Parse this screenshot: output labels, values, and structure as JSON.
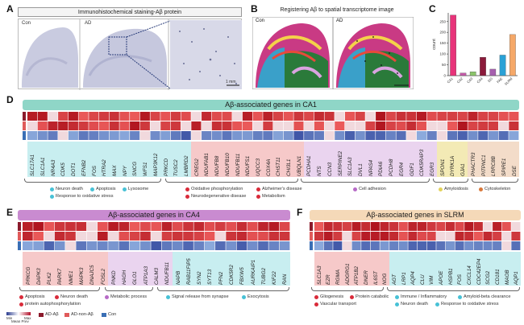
{
  "panelA": {
    "label": "A",
    "title": "Immunohistochemical staining-Aβ protein",
    "con": "Con",
    "ad": "AD",
    "scale": "1 mm"
  },
  "panelB": {
    "label": "B",
    "title": "Registering Aβ to spatial transcriptome image",
    "con": "Con",
    "ad": "AD"
  },
  "panelC": {
    "label": "C",
    "ylabel": "count",
    "ticks": [
      "0",
      "50",
      "100",
      "150",
      "200",
      "250"
    ]
  },
  "chart_data": {
    "type": "bar",
    "categories": [
      "CA1",
      "CA2",
      "CA3",
      "CA4",
      "DG",
      "FAE",
      "SLRM"
    ],
    "values": [
      280,
      12,
      18,
      85,
      30,
      95,
      190
    ],
    "colors": [
      "#e8337a",
      "#c45aa8",
      "#8bc46a",
      "#8b1a3a",
      "#a65fae",
      "#2aa1d6",
      "#f5a868"
    ],
    "ylabel": "count",
    "ylim": [
      0,
      290
    ]
  },
  "panelD": {
    "label": "D",
    "banner": "Aβ-associated genes in CA1",
    "genes": [
      "SLC17A1",
      "SLC1A1",
      "NR4A3",
      "CDK5",
      "DOT1",
      "EFNB2",
      "FOS",
      "HTRA2",
      "MAX",
      "NPY",
      "SNCG",
      "WFS1",
      "MAP3K12",
      "PRKCD",
      "TUSC2",
      "LMBRD2",
      "CREG2",
      "NDUFAB1",
      "NDUFB8",
      "NDUFB10",
      "NDUFB11",
      "NDUFS1",
      "UQCC3",
      "COX4A",
      "CHST11",
      "CHI3L1",
      "UBQLN1",
      "PCDHA1",
      "NTS",
      "CCN3",
      "SERPINE2",
      "SLC1A3",
      "DVL1",
      "NPAS4",
      "PDIA6",
      "PCDH8",
      "EGR4",
      "GDF1",
      "CDK5RAP3",
      "EGR3",
      "SPON1",
      "DYRK1A",
      "GJA1",
      "PHACTR3",
      "PITPNC1",
      "LRRC8B",
      "SPIRE1",
      "DSE"
    ],
    "legend": {
      "neuron_death": "Neuron death",
      "apoptosis": "Apoptosis",
      "lysosome": "Lysosome",
      "oxidative": "Response to oxidative stress",
      "oxphos": "Oxidative phosphorylation",
      "alzheimer": "Alzheimer's disease",
      "neurodegen": "Neurodegenerative disease",
      "metabolism": "Metabolism",
      "cell_adhesion": "Cell adhesion",
      "amyloidosis": "Amyloidosis",
      "cytoskeleton": "Cytoskeleton"
    }
  },
  "panelE": {
    "label": "E",
    "banner": "Aβ-associated genes in CA4",
    "genes": [
      "PRKCG",
      "DAPK3",
      "PLK2",
      "PARK7",
      "NME1",
      "MAPK3",
      "DNAJC5",
      "FOSL2",
      "PNKD",
      "HAGH",
      "GLO1",
      "ATP1A3",
      "CALM3",
      "NDUFB11",
      "NAPB",
      "RAB11FIP5",
      "SYN2",
      "SYT13",
      "PFN2",
      "CDK5R2",
      "FBXW5",
      "AURKAIP1",
      "TUBG2",
      "KIF22",
      "RAN"
    ],
    "legend": {
      "apoptosis": "Apoptosis",
      "neuron_death": "Neuron death",
      "autophagy": "protein autophosphorylation",
      "metabolic": "Metabolic process",
      "signal": "Signal release from synapse",
      "exocytosis": "Exocytosis"
    }
  },
  "panelF": {
    "label": "F",
    "banner": "Aβ-associated genes in SLRM",
    "genes": [
      "SLC1A3",
      "EZR",
      "RGMA",
      "ADGRG1",
      "ATP1B2",
      "DNER",
      "IL6ST",
      "NOG",
      "AGT",
      "LRP1",
      "AQP4",
      "CLU",
      "VIM",
      "APOE",
      "HSPB1",
      "FOS",
      "CXCL14",
      "CDC42EP4",
      "SCG2",
      "CD181",
      "MAOB",
      "AQP1"
    ],
    "legend": {
      "gliogenesis": "Gliogenesis",
      "protein_catabolic": "Protein catabolic",
      "vascular": "Vascular transport",
      "immune": "Immune / Inflammatory",
      "amyloid": "Amyloid-beta clearance",
      "neuron_death": "Neuron death",
      "oxidative": "Response to oxidative stress"
    }
  },
  "heatmap_legend": {
    "min": "Min",
    "max": "Max",
    "caption": "Mean Prev",
    "ad_abeta": "AD-Aβ",
    "ad_non": "AD-non-Aβ",
    "con": "Con"
  },
  "colors": {
    "ad_abeta": "#8b1a2b",
    "ad_non": "#e05a5a",
    "con": "#3a6fb5",
    "cyan": "#47c1d6",
    "red": "#d92b3a",
    "purple": "#b76ac7",
    "yellow": "#e3d25a",
    "orange": "#d9783a"
  }
}
